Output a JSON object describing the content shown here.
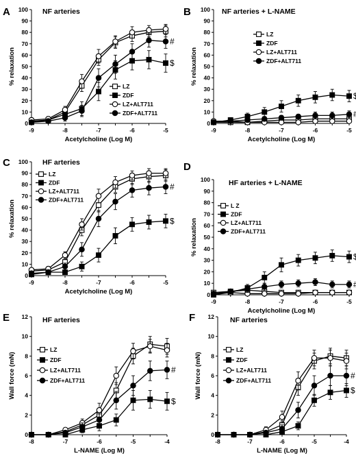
{
  "chart_data": [
    {
      "type": "line",
      "panel": "A",
      "title": "NF arteries",
      "xlabel": "Acetylcholine (Log M)",
      "ylabel": "% relaxation",
      "x": [
        -9,
        -8.5,
        -8,
        -7.5,
        -7,
        -6.5,
        -6,
        -5.5,
        -5
      ],
      "x_ticks": [
        -9,
        -8,
        -7,
        -6,
        -5
      ],
      "xlim": [
        -9,
        -5
      ],
      "ylim": [
        0,
        100
      ],
      "y_ticks": [
        0,
        10,
        20,
        30,
        40,
        50,
        60,
        70,
        80,
        90,
        100
      ],
      "grid": false,
      "legend_position": "bottom-right",
      "series": [
        {
          "name": "LZ",
          "marker": "open-square",
          "values": [
            2,
            3,
            10,
            33,
            56,
            71,
            77,
            80,
            81
          ],
          "errors": [
            2,
            2,
            3,
            5,
            5,
            5,
            5,
            4,
            5
          ]
        },
        {
          "name": "ZDF",
          "marker": "filled-square",
          "values": [
            1,
            3,
            8,
            13,
            28,
            47,
            55,
            56,
            53
          ],
          "errors": [
            2,
            2,
            3,
            6,
            8,
            8,
            8,
            8,
            8
          ]
        },
        {
          "name": "LZ+ALT711",
          "marker": "open-circle",
          "values": [
            3,
            4,
            12,
            37,
            59,
            72,
            80,
            82,
            83
          ],
          "errors": [
            2,
            2,
            3,
            6,
            6,
            5,
            5,
            4,
            4
          ]
        },
        {
          "name": "ZDF+ALT711",
          "marker": "filled-circle",
          "values": [
            1,
            2,
            5,
            11,
            40,
            52,
            63,
            73,
            72
          ],
          "errors": [
            2,
            2,
            3,
            5,
            8,
            8,
            7,
            6,
            6
          ]
        }
      ],
      "annotations": [
        {
          "text": "#",
          "series": 3
        },
        {
          "text": "$",
          "series": 1
        }
      ]
    },
    {
      "type": "line",
      "panel": "B",
      "title": "NF arteries + L-NAME",
      "xlabel": "Acetylcholine (Log M)",
      "ylabel": "% relaxation",
      "x": [
        -9,
        -8.5,
        -8,
        -7.5,
        -7,
        -6.5,
        -6,
        -5.5,
        -5
      ],
      "x_ticks": [
        -9,
        -8,
        -7,
        -6,
        -5
      ],
      "xlim": [
        -9,
        -5
      ],
      "ylim": [
        0,
        100
      ],
      "y_ticks": [
        0,
        10,
        20,
        30,
        40,
        50,
        60,
        70,
        80,
        90,
        100
      ],
      "grid": false,
      "legend_position": "top-right",
      "series": [
        {
          "name": "LZ",
          "marker": "open-square",
          "values": [
            1,
            1,
            1,
            2,
            3,
            3,
            4,
            4,
            4
          ],
          "errors": [
            1,
            1,
            1,
            1,
            2,
            2,
            2,
            2,
            2
          ]
        },
        {
          "name": "ZDF",
          "marker": "filled-square",
          "values": [
            1,
            3,
            6,
            10,
            15,
            20,
            23,
            25,
            24
          ],
          "errors": [
            2,
            2,
            3,
            4,
            5,
            5,
            5,
            5,
            5
          ]
        },
        {
          "name": "LZ+ALT711",
          "marker": "open-circle",
          "values": [
            2,
            2,
            1,
            1,
            1,
            1,
            2,
            2,
            2
          ],
          "errors": [
            1,
            1,
            1,
            1,
            1,
            1,
            1,
            1,
            1
          ]
        },
        {
          "name": "ZDF+ALT711",
          "marker": "filled-circle",
          "values": [
            1,
            2,
            3,
            4,
            5,
            6,
            7,
            7,
            8
          ],
          "errors": [
            1,
            1,
            2,
            2,
            2,
            2,
            3,
            3,
            3
          ]
        }
      ],
      "annotations": [
        {
          "text": "$",
          "series": 1
        },
        {
          "text": "#",
          "series": 3
        }
      ]
    },
    {
      "type": "line",
      "panel": "C",
      "title": "HF arteries",
      "xlabel": "Acetylcholine (Log M)",
      "ylabel": "% relaxation",
      "x": [
        -9,
        -8.5,
        -8,
        -7.5,
        -7,
        -6.5,
        -6,
        -5.5,
        -5
      ],
      "x_ticks": [
        -9,
        -8,
        -7,
        -6,
        -5
      ],
      "xlim": [
        -9,
        -5
      ],
      "ylim": [
        0,
        100
      ],
      "y_ticks": [
        0,
        10,
        20,
        30,
        40,
        50,
        60,
        70,
        80,
        90,
        100
      ],
      "grid": false,
      "legend_position": "top-left",
      "series": [
        {
          "name": "LZ",
          "marker": "open-square",
          "values": [
            4,
            5,
            12,
            40,
            62,
            78,
            85,
            87,
            88
          ],
          "errors": [
            2,
            2,
            3,
            5,
            6,
            5,
            5,
            5,
            5
          ]
        },
        {
          "name": "ZDF",
          "marker": "filled-square",
          "values": [
            1,
            3,
            3,
            8,
            18,
            35,
            45,
            47,
            48
          ],
          "errors": [
            1,
            2,
            2,
            4,
            6,
            7,
            6,
            6,
            6
          ]
        },
        {
          "name": "LZ+ALT711",
          "marker": "open-circle",
          "values": [
            5,
            6,
            18,
            45,
            70,
            82,
            88,
            90,
            90
          ],
          "errors": [
            2,
            2,
            3,
            5,
            6,
            5,
            4,
            4,
            4
          ]
        },
        {
          "name": "ZDF+ALT711",
          "marker": "filled-circle",
          "values": [
            2,
            3,
            8,
            23,
            50,
            65,
            75,
            77,
            78
          ],
          "errors": [
            1,
            2,
            3,
            6,
            7,
            7,
            6,
            6,
            6
          ]
        }
      ],
      "annotations": [
        {
          "text": "#",
          "series": 3
        },
        {
          "text": "$",
          "series": 1
        }
      ]
    },
    {
      "type": "line",
      "panel": "D",
      "title": "HF arteries + L-NAME",
      "xlabel": "Acetylcholine (Log M)",
      "ylabel": "% relaxation",
      "x": [
        -9,
        -8.5,
        -8,
        -7.5,
        -7,
        -6.5,
        -6,
        -5.5,
        -5
      ],
      "x_ticks": [
        -9,
        -8,
        -7,
        -6,
        -5
      ],
      "xlim": [
        -9,
        -5
      ],
      "ylim": [
        0,
        100
      ],
      "y_ticks": [
        0,
        10,
        20,
        30,
        40,
        50,
        60,
        70,
        80,
        90,
        100
      ],
      "grid": false,
      "legend_position": "top-left",
      "series": [
        {
          "name": "L Z",
          "marker": "open-square",
          "values": [
            2,
            3,
            4,
            3,
            2,
            2,
            2,
            2,
            2
          ],
          "errors": [
            1,
            1,
            1,
            1,
            1,
            1,
            1,
            1,
            1
          ]
        },
        {
          "name": "ZDF",
          "marker": "filled-square",
          "values": [
            0,
            2,
            6,
            15,
            26,
            30,
            32,
            34,
            33
          ],
          "errors": [
            1,
            2,
            3,
            5,
            6,
            5,
            5,
            5,
            5
          ]
        },
        {
          "name": "LZ+ALT711",
          "marker": "open-circle",
          "values": [
            1,
            2,
            1,
            1,
            1,
            1,
            2,
            2,
            2
          ],
          "errors": [
            1,
            1,
            1,
            1,
            1,
            1,
            1,
            1,
            1
          ]
        },
        {
          "name": "ZDF+ALT711",
          "marker": "filled-circle",
          "values": [
            1,
            3,
            5,
            7,
            9,
            10,
            11,
            9,
            9
          ],
          "errors": [
            1,
            2,
            3,
            3,
            3,
            3,
            3,
            3,
            3
          ]
        }
      ],
      "annotations": [
        {
          "text": "$",
          "series": 1
        },
        {
          "text": "#",
          "series": 3
        }
      ]
    },
    {
      "type": "line",
      "panel": "E",
      "title": "HF arteries",
      "xlabel": "L-NAME (Log M)",
      "ylabel": "Wall force (mN)",
      "x": [
        -8,
        -7.5,
        -7,
        -6.5,
        -6,
        -5.5,
        -5,
        -4.5,
        -4
      ],
      "x_ticks": [
        -8,
        -7,
        -6,
        -5,
        -4
      ],
      "xlim": [
        -8,
        -4
      ],
      "ylim": [
        0,
        12
      ],
      "y_ticks": [
        0,
        2,
        4,
        6,
        8,
        10,
        12
      ],
      "grid": false,
      "legend_position": "left",
      "series": [
        {
          "name": "LZ",
          "marker": "open-square",
          "values": [
            0,
            0,
            0.3,
            1.0,
            2.0,
            4.5,
            8.0,
            9.2,
            9.0
          ],
          "errors": [
            0,
            0,
            0.2,
            0.4,
            0.6,
            0.8,
            0.8,
            0.8,
            0.8
          ]
        },
        {
          "name": "ZDF",
          "marker": "filled-square",
          "values": [
            0,
            0,
            0,
            0.5,
            0.9,
            1.5,
            3.5,
            3.6,
            3.4
          ],
          "errors": [
            0,
            0,
            0,
            0.3,
            0.5,
            0.6,
            1.0,
            0.9,
            0.9
          ]
        },
        {
          "name": "LZ+ALT711",
          "marker": "open-circle",
          "values": [
            0,
            0,
            0.5,
            1.2,
            2.5,
            6.0,
            8.5,
            9.0,
            8.6
          ],
          "errors": [
            0,
            0,
            0.2,
            0.4,
            0.7,
            0.9,
            0.8,
            0.7,
            0.7
          ]
        },
        {
          "name": "ZDF+ALT711",
          "marker": "filled-circle",
          "values": [
            0,
            0,
            0.2,
            0.8,
            1.5,
            3.5,
            5.0,
            6.5,
            6.6
          ],
          "errors": [
            0,
            0,
            0.2,
            0.4,
            0.6,
            0.9,
            1.0,
            1.0,
            0.9
          ]
        }
      ],
      "annotations": [
        {
          "text": "#",
          "series": 3
        },
        {
          "text": "$",
          "series": 1
        }
      ]
    },
    {
      "type": "line",
      "panel": "F",
      "title": "NF arteries",
      "xlabel": "L-NAME (Log M)",
      "ylabel": "Wall force (mN)",
      "x": [
        -8,
        -7.5,
        -7,
        -6.5,
        -6,
        -5.5,
        -5,
        -4.5,
        -4
      ],
      "x_ticks": [
        -8,
        -7,
        -6,
        -5,
        -4
      ],
      "xlim": [
        -8,
        -4
      ],
      "ylim": [
        0,
        12
      ],
      "y_ticks": [
        0,
        2,
        4,
        6,
        8,
        10,
        12
      ],
      "grid": false,
      "legend_position": "left",
      "series": [
        {
          "name": "LZ",
          "marker": "open-square",
          "values": [
            0,
            0,
            0,
            0.3,
            1.0,
            4.8,
            7.5,
            8.0,
            7.8
          ],
          "errors": [
            0,
            0,
            0,
            0.2,
            0.4,
            0.8,
            0.8,
            0.8,
            0.8
          ]
        },
        {
          "name": "ZDF",
          "marker": "filled-square",
          "values": [
            0,
            0,
            0,
            0,
            0.3,
            0.9,
            3.5,
            4.3,
            4.5
          ],
          "errors": [
            0,
            0,
            0,
            0,
            0.2,
            0.4,
            0.6,
            0.7,
            0.7
          ]
        },
        {
          "name": "LZ+ALT711",
          "marker": "open-circle",
          "values": [
            0,
            0,
            0,
            0.5,
            1.8,
            5.5,
            7.8,
            7.8,
            7.5
          ],
          "errors": [
            0,
            0,
            0,
            0.3,
            0.6,
            0.9,
            0.8,
            0.8,
            0.8
          ]
        },
        {
          "name": "ZDF+ALT711",
          "marker": "filled-circle",
          "values": [
            0,
            0,
            0,
            0.2,
            0.6,
            2.5,
            5.0,
            6.0,
            6.0
          ],
          "errors": [
            0,
            0,
            0,
            0.2,
            0.4,
            0.8,
            1.0,
            1.0,
            1.0
          ]
        }
      ],
      "annotations": [
        {
          "text": "#",
          "series": 3
        },
        {
          "text": "$",
          "series": 1
        }
      ]
    }
  ]
}
